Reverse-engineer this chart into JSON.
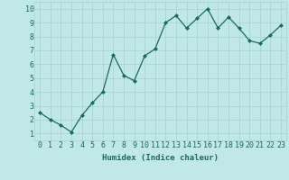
{
  "x": [
    0,
    1,
    2,
    3,
    4,
    5,
    6,
    7,
    8,
    9,
    10,
    11,
    12,
    13,
    14,
    15,
    16,
    17,
    18,
    19,
    20,
    21,
    22,
    23
  ],
  "y": [
    2.5,
    2.0,
    1.6,
    1.1,
    2.3,
    3.2,
    4.0,
    6.7,
    5.2,
    4.8,
    6.6,
    7.1,
    9.0,
    9.5,
    8.6,
    9.3,
    10.0,
    8.6,
    9.4,
    8.6,
    7.7,
    7.5,
    8.1,
    8.8
  ],
  "line_color": "#1a6b5a",
  "marker": "D",
  "marker_size": 2,
  "bg_color": "#c0e8e8",
  "grid_color": "#a8d0d0",
  "xlabel": "Humidex (Indice chaleur)",
  "xlim": [
    -0.5,
    23.5
  ],
  "ylim": [
    0.5,
    10.5
  ],
  "yticks": [
    1,
    2,
    3,
    4,
    5,
    6,
    7,
    8,
    9,
    10
  ],
  "xticks": [
    0,
    1,
    2,
    3,
    4,
    5,
    6,
    7,
    8,
    9,
    10,
    11,
    12,
    13,
    14,
    15,
    16,
    17,
    18,
    19,
    20,
    21,
    22,
    23
  ],
  "tick_color": "#1a6b5a",
  "label_fontsize": 6.5,
  "tick_fontsize": 6.0
}
